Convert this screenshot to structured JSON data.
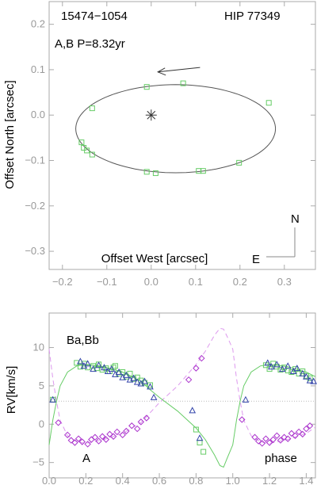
{
  "chart_data": [
    {
      "type": "scatter",
      "panel": "orbit",
      "annotations": {
        "wds_id": "15474−1054",
        "hip_id": "HIP 77349",
        "pair_period": "A,B P=8.32yr",
        "north": "N",
        "east": "E"
      },
      "xlabel": "Offset West [arcsec]",
      "ylabel": "Offset North [arcsec]",
      "xlim": [
        -0.23,
        0.37
      ],
      "ylim": [
        -0.34,
        0.25
      ],
      "xticks": [
        -0.2,
        -0.1,
        0.0,
        0.1,
        0.2,
        0.3
      ],
      "yticks": [
        -0.3,
        -0.2,
        -0.1,
        0.0,
        0.1,
        0.2
      ],
      "xtick_labels": [
        "−0.2",
        "−0.1",
        "0.0",
        "0.1",
        "0.2",
        "0.3"
      ],
      "ytick_labels": [
        "−0.3",
        "−0.2",
        "−0.1",
        "0.0",
        "0.1",
        "0.2"
      ],
      "primary_star": {
        "x": 0.0,
        "y": 0.0
      },
      "orbit_ellipse": {
        "center_x": 0.055,
        "center_y": -0.03,
        "semi_x": 0.225,
        "semi_y": 0.097
      },
      "observations": [
        {
          "x": -0.133,
          "y": 0.015
        },
        {
          "x": -0.01,
          "y": 0.062
        },
        {
          "x": 0.072,
          "y": 0.07
        },
        {
          "x": 0.265,
          "y": 0.027
        },
        {
          "x": -0.157,
          "y": -0.06
        },
        {
          "x": -0.152,
          "y": -0.072
        },
        {
          "x": -0.145,
          "y": -0.078
        },
        {
          "x": -0.133,
          "y": -0.087
        },
        {
          "x": -0.01,
          "y": -0.125
        },
        {
          "x": 0.01,
          "y": -0.128
        },
        {
          "x": 0.107,
          "y": -0.123
        },
        {
          "x": 0.117,
          "y": -0.123
        },
        {
          "x": 0.198,
          "y": -0.105
        }
      ],
      "motion_arrow": {
        "from": [
          0.11,
          0.105
        ],
        "to": [
          0.015,
          0.095
        ]
      },
      "grid": false
    },
    {
      "type": "scatter",
      "panel": "radial-velocity",
      "annotations": {
        "pair": "Ba,Bb",
        "component": "A",
        "xlabel_inline": "phase"
      },
      "ylabel": "RV[km/s]",
      "xlim": [
        0.0,
        1.45
      ],
      "ylim": [
        -7.0,
        14.5
      ],
      "xticks": [
        0.0,
        0.2,
        0.4,
        0.6,
        0.8,
        1.0,
        1.2,
        1.4
      ],
      "yticks": [
        -5,
        0,
        5,
        10
      ],
      "xtick_labels": [
        "0.0",
        "0.2",
        "0.4",
        "0.6",
        "0.8",
        "1.0",
        "1.2",
        "1.4"
      ],
      "ytick_labels": [
        "−5",
        "0",
        "5",
        "10"
      ],
      "systemic_velocity": 3.0,
      "primary_curve": [
        [
          0.0,
          -2.7
        ],
        [
          0.02,
          0.5
        ],
        [
          0.04,
          3.0
        ],
        [
          0.06,
          5.0
        ],
        [
          0.1,
          6.8
        ],
        [
          0.15,
          7.6
        ],
        [
          0.2,
          7.8
        ],
        [
          0.3,
          7.5
        ],
        [
          0.4,
          6.8
        ],
        [
          0.5,
          5.6
        ],
        [
          0.55,
          4.5
        ],
        [
          0.6,
          3.5
        ],
        [
          0.7,
          1.7
        ],
        [
          0.8,
          -0.5
        ],
        [
          0.85,
          -2.0
        ],
        [
          0.9,
          -4.0
        ],
        [
          0.93,
          -5.4
        ],
        [
          0.95,
          -5.6
        ],
        [
          0.97,
          -4.4
        ],
        [
          1.0,
          -2.7
        ],
        [
          1.02,
          0.5
        ],
        [
          1.04,
          3.0
        ],
        [
          1.06,
          5.0
        ],
        [
          1.1,
          6.8
        ],
        [
          1.15,
          7.6
        ],
        [
          1.2,
          7.8
        ],
        [
          1.3,
          7.5
        ],
        [
          1.4,
          6.8
        ],
        [
          1.45,
          6.2
        ]
      ],
      "secondary_curve": [
        [
          0.0,
          9.8
        ],
        [
          0.02,
          6.0
        ],
        [
          0.04,
          3.0
        ],
        [
          0.06,
          0.5
        ],
        [
          0.1,
          -1.5
        ],
        [
          0.15,
          -2.3
        ],
        [
          0.2,
          -2.5
        ],
        [
          0.3,
          -2.0
        ],
        [
          0.4,
          -1.2
        ],
        [
          0.5,
          0.2
        ],
        [
          0.55,
          1.5
        ],
        [
          0.6,
          2.8
        ],
        [
          0.7,
          5.0
        ],
        [
          0.8,
          7.8
        ],
        [
          0.85,
          9.5
        ],
        [
          0.9,
          11.6
        ],
        [
          0.93,
          12.5
        ],
        [
          0.95,
          12.4
        ],
        [
          0.97,
          11.4
        ],
        [
          1.0,
          9.8
        ],
        [
          1.02,
          6.0
        ],
        [
          1.04,
          3.0
        ],
        [
          1.06,
          0.5
        ],
        [
          1.1,
          -1.5
        ],
        [
          1.15,
          -2.3
        ],
        [
          1.2,
          -2.5
        ],
        [
          1.3,
          -2.0
        ],
        [
          1.4,
          -1.2
        ],
        [
          1.45,
          -0.4
        ]
      ],
      "primary_points": [
        [
          0.02,
          3.2
        ],
        [
          0.15,
          8.0
        ],
        [
          0.17,
          7.5
        ],
        [
          0.19,
          7.9
        ],
        [
          0.21,
          7.4
        ],
        [
          0.24,
          7.6
        ],
        [
          0.27,
          7.8
        ],
        [
          0.29,
          7.1
        ],
        [
          0.31,
          7.3
        ],
        [
          0.33,
          6.9
        ],
        [
          0.35,
          7.4
        ],
        [
          0.38,
          6.6
        ],
        [
          0.4,
          6.8
        ],
        [
          0.42,
          6.2
        ],
        [
          0.44,
          6.6
        ],
        [
          0.46,
          5.9
        ],
        [
          0.48,
          6.1
        ],
        [
          0.5,
          5.7
        ],
        [
          0.52,
          5.4
        ],
        [
          0.55,
          5.1
        ],
        [
          0.8,
          -0.7
        ],
        [
          0.82,
          -2.4
        ],
        [
          0.84,
          -3.6
        ],
        [
          1.18,
          7.7
        ],
        [
          1.2,
          7.2
        ],
        [
          1.22,
          7.9
        ],
        [
          1.24,
          7.5
        ],
        [
          1.26,
          7.1
        ],
        [
          1.28,
          7.4
        ],
        [
          1.3,
          7.0
        ],
        [
          1.32,
          6.8
        ],
        [
          1.34,
          7.2
        ],
        [
          1.36,
          6.6
        ],
        [
          1.38,
          6.9
        ],
        [
          1.4,
          6.3
        ],
        [
          1.42,
          6.0
        ],
        [
          0.36,
          7.6
        ],
        [
          0.26,
          7.3
        ]
      ],
      "secondary_points": [
        [
          0.05,
          0.2
        ],
        [
          0.1,
          -1.4
        ],
        [
          0.12,
          -2.1
        ],
        [
          0.14,
          -2.4
        ],
        [
          0.16,
          -1.9
        ],
        [
          0.18,
          -2.3
        ],
        [
          0.21,
          -2.6
        ],
        [
          0.23,
          -2.0
        ],
        [
          0.25,
          -1.7
        ],
        [
          0.27,
          -2.2
        ],
        [
          0.29,
          -1.6
        ],
        [
          0.31,
          -2.0
        ],
        [
          0.33,
          -1.3
        ],
        [
          0.35,
          -1.6
        ],
        [
          0.37,
          -1.0
        ],
        [
          0.4,
          -1.4
        ],
        [
          0.42,
          -0.9
        ],
        [
          0.45,
          -0.2
        ],
        [
          0.48,
          -0.6
        ],
        [
          0.5,
          0.3
        ],
        [
          0.53,
          0.8
        ],
        [
          0.76,
          5.8
        ],
        [
          0.8,
          7.3
        ],
        [
          0.83,
          8.6
        ],
        [
          1.05,
          0.6
        ],
        [
          1.12,
          -1.7
        ],
        [
          1.14,
          -2.2
        ],
        [
          1.16,
          -2.5
        ],
        [
          1.18,
          -1.9
        ],
        [
          1.2,
          -2.4
        ],
        [
          1.22,
          -2.0
        ],
        [
          1.24,
          -1.5
        ],
        [
          1.26,
          -2.1
        ],
        [
          1.28,
          -1.7
        ],
        [
          1.3,
          -1.9
        ],
        [
          1.32,
          -1.2
        ],
        [
          1.34,
          -1.5
        ],
        [
          1.36,
          -1.0
        ],
        [
          1.38,
          -1.3
        ],
        [
          1.4,
          -0.6
        ],
        [
          1.42,
          -0.2
        ]
      ],
      "subsystem_points": [
        [
          0.17,
          8.2
        ],
        [
          0.19,
          7.6
        ],
        [
          0.21,
          7.9
        ],
        [
          0.24,
          7.2
        ],
        [
          0.27,
          7.7
        ],
        [
          0.3,
          7.4
        ],
        [
          0.32,
          6.9
        ],
        [
          0.34,
          7.2
        ],
        [
          0.36,
          6.5
        ],
        [
          0.38,
          6.8
        ],
        [
          0.4,
          6.1
        ],
        [
          0.42,
          6.4
        ],
        [
          0.44,
          5.8
        ],
        [
          0.46,
          6.0
        ],
        [
          0.48,
          5.5
        ],
        [
          0.5,
          5.3
        ],
        [
          0.52,
          5.6
        ],
        [
          0.55,
          4.9
        ],
        [
          0.57,
          3.5
        ],
        [
          0.02,
          3.2
        ],
        [
          0.78,
          1.8
        ],
        [
          0.82,
          -1.8
        ],
        [
          1.07,
          3.2
        ],
        [
          1.19,
          8.0
        ],
        [
          1.21,
          7.5
        ],
        [
          1.24,
          7.8
        ],
        [
          1.27,
          7.2
        ],
        [
          1.3,
          7.6
        ],
        [
          1.33,
          6.9
        ],
        [
          1.35,
          7.3
        ],
        [
          1.38,
          6.6
        ],
        [
          1.4,
          6.2
        ],
        [
          1.42,
          5.7
        ],
        [
          1.44,
          5.6
        ]
      ],
      "colors": {
        "primary": "#66cc66",
        "secondary": "#aa33cc",
        "secondary_curve": "#dd99ee",
        "subsystem": "#3344aa",
        "orbit_points": "#66cc66",
        "orbit_curve": "#555555",
        "axis": "#aaaaaa",
        "systemic": "#bbbbbb"
      },
      "grid": false
    }
  ]
}
